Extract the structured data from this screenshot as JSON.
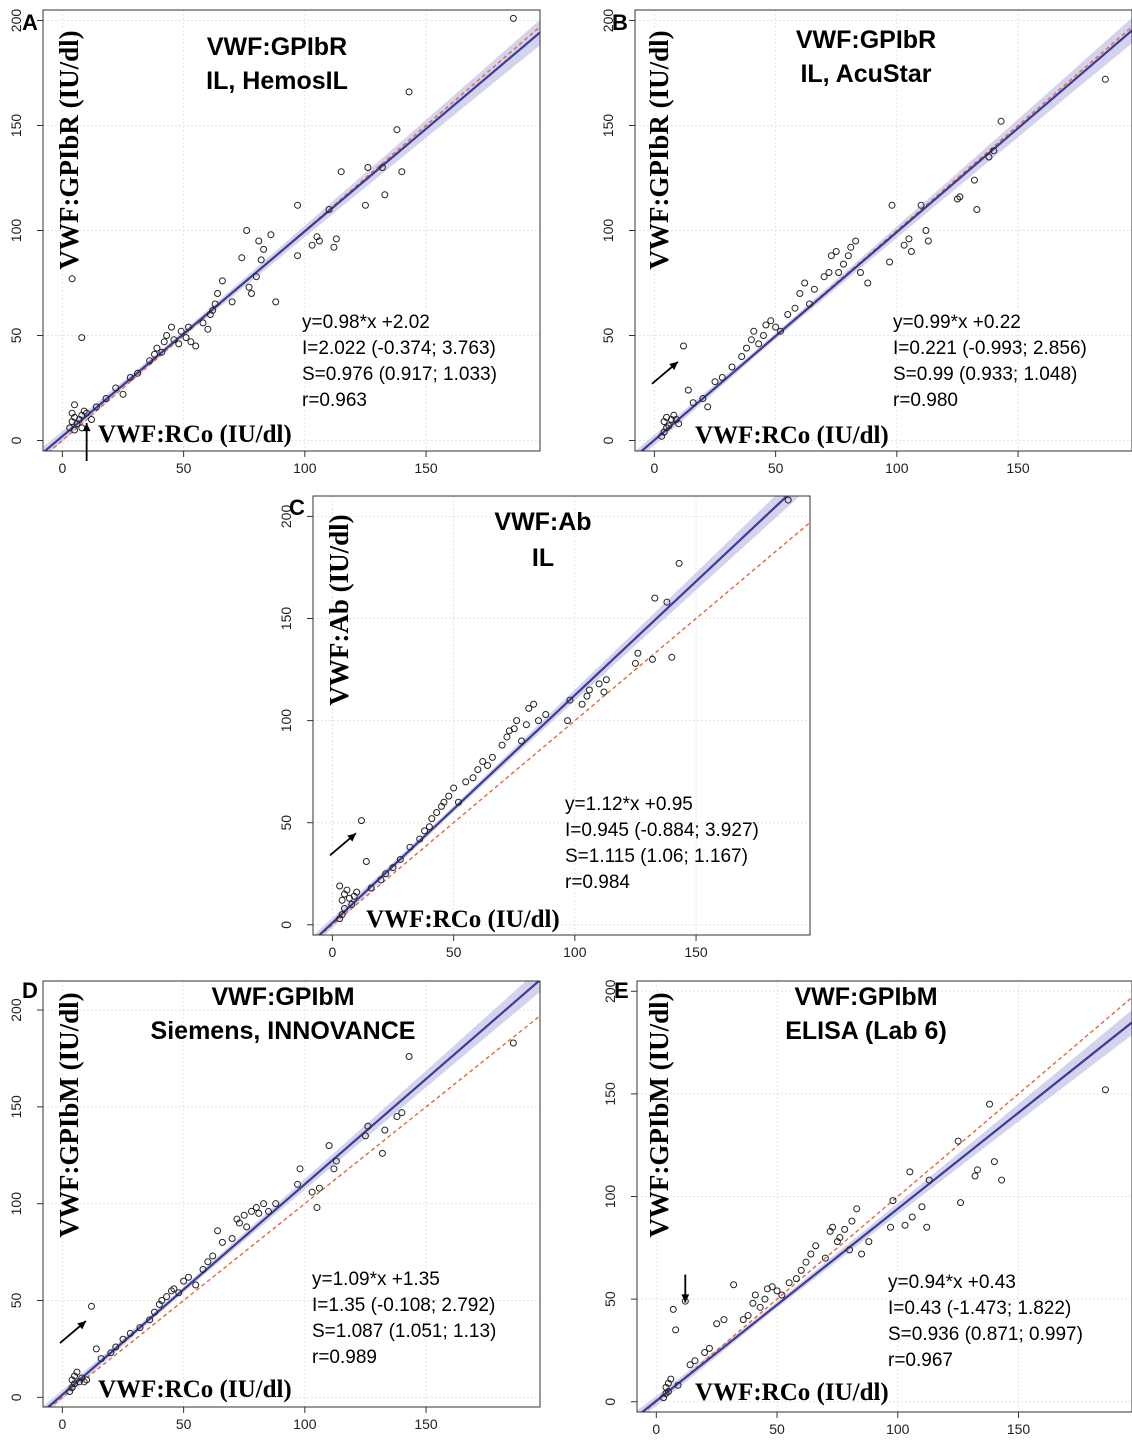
{
  "chart_data": [
    {
      "type": "scatter",
      "panel": "A",
      "title": [
        "VWF:GPIbR",
        "IL, HemosIL"
      ],
      "xlabel": "VWF:RCo (IU/dl)",
      "ylabel": "VWF:GPIbR (IU/dl)",
      "xlim": [
        -8,
        197
      ],
      "ylim": [
        -5,
        205
      ],
      "x_ticks": [
        0,
        50,
        100,
        150
      ],
      "y_ticks": [
        0,
        50,
        100,
        150,
        200
      ],
      "stats": [
        "y=0.98*x +2.02",
        "I=2.022 (-0.374; 3.763)",
        "S=0.976 (0.917; 1.033)",
        "r=0.963"
      ],
      "fit": {
        "slope": 0.976,
        "intercept": 2.022
      },
      "identity_line": true,
      "annotation_arrow": {
        "x": 10,
        "y": -15,
        "direction": "up"
      },
      "points": [
        [
          3,
          6
        ],
        [
          4,
          9
        ],
        [
          5,
          11
        ],
        [
          4,
          13
        ],
        [
          5,
          17
        ],
        [
          4,
          77
        ],
        [
          8,
          49
        ],
        [
          6,
          8
        ],
        [
          7,
          10
        ],
        [
          8,
          12
        ],
        [
          9,
          14
        ],
        [
          10,
          13
        ],
        [
          8,
          6
        ],
        [
          5,
          5
        ],
        [
          12,
          10
        ],
        [
          14,
          16
        ],
        [
          18,
          20
        ],
        [
          22,
          25
        ],
        [
          25,
          22
        ],
        [
          28,
          30
        ],
        [
          31,
          32
        ],
        [
          36,
          38
        ],
        [
          38,
          41
        ],
        [
          39,
          44
        ],
        [
          41,
          42
        ],
        [
          42,
          47
        ],
        [
          43,
          50
        ],
        [
          45,
          54
        ],
        [
          46,
          48
        ],
        [
          48,
          46
        ],
        [
          49,
          52
        ],
        [
          51,
          49
        ],
        [
          52,
          54
        ],
        [
          53,
          47
        ],
        [
          55,
          45
        ],
        [
          58,
          56
        ],
        [
          60,
          53
        ],
        [
          61,
          60
        ],
        [
          62,
          62
        ],
        [
          63,
          65
        ],
        [
          64,
          70
        ],
        [
          66,
          76
        ],
        [
          70,
          66
        ],
        [
          74,
          87
        ],
        [
          76,
          100
        ],
        [
          77,
          73
        ],
        [
          78,
          70
        ],
        [
          80,
          78
        ],
        [
          81,
          95
        ],
        [
          82,
          86
        ],
        [
          83,
          91
        ],
        [
          86,
          98
        ],
        [
          88,
          66
        ],
        [
          97,
          88
        ],
        [
          97,
          112
        ],
        [
          103,
          93
        ],
        [
          105,
          97
        ],
        [
          106,
          95
        ],
        [
          110,
          110
        ],
        [
          112,
          92
        ],
        [
          113,
          96
        ],
        [
          115,
          128
        ],
        [
          125,
          112
        ],
        [
          126,
          130
        ],
        [
          132,
          130
        ],
        [
          133,
          117
        ],
        [
          138,
          148
        ],
        [
          140,
          128
        ],
        [
          143,
          166
        ],
        [
          186,
          201
        ]
      ]
    },
    {
      "type": "scatter",
      "panel": "B",
      "title": [
        "VWF:GPIbR",
        "IL, AcuStar"
      ],
      "xlabel": "VWF:RCo (IU/dl)",
      "ylabel": "VWF:GPIbR (IU/dl)",
      "xlim": [
        -8,
        197
      ],
      "ylim": [
        -5,
        205
      ],
      "x_ticks": [
        0,
        50,
        100,
        150
      ],
      "y_ticks": [
        0,
        50,
        100,
        150,
        200
      ],
      "stats": [
        "y=0.99*x +0.22",
        "I=0.221 (-0.993; 2.856)",
        "S=0.99 (0.933; 1.048)",
        "r=0.980"
      ],
      "fit": {
        "slope": 0.99,
        "intercept": 0.221
      },
      "identity_line": true,
      "annotation_arrow": {
        "x": -1,
        "y": 27,
        "direction": "up-right"
      },
      "points": [
        [
          3,
          2
        ],
        [
          4,
          4
        ],
        [
          5,
          6
        ],
        [
          4,
          9
        ],
        [
          5,
          11
        ],
        [
          6,
          7
        ],
        [
          7,
          10
        ],
        [
          8,
          12
        ],
        [
          9,
          10
        ],
        [
          10,
          8
        ],
        [
          12,
          45
        ],
        [
          14,
          24
        ],
        [
          16,
          18
        ],
        [
          20,
          20
        ],
        [
          22,
          16
        ],
        [
          25,
          28
        ],
        [
          28,
          30
        ],
        [
          32,
          35
        ],
        [
          36,
          40
        ],
        [
          38,
          44
        ],
        [
          40,
          48
        ],
        [
          41,
          52
        ],
        [
          43,
          46
        ],
        [
          45,
          50
        ],
        [
          46,
          55
        ],
        [
          48,
          57
        ],
        [
          50,
          54
        ],
        [
          52,
          52
        ],
        [
          55,
          60
        ],
        [
          58,
          63
        ],
        [
          60,
          70
        ],
        [
          62,
          75
        ],
        [
          64,
          65
        ],
        [
          66,
          72
        ],
        [
          70,
          78
        ],
        [
          72,
          80
        ],
        [
          73,
          88
        ],
        [
          75,
          90
        ],
        [
          76,
          80
        ],
        [
          78,
          84
        ],
        [
          80,
          88
        ],
        [
          81,
          92
        ],
        [
          83,
          95
        ],
        [
          85,
          80
        ],
        [
          88,
          75
        ],
        [
          97,
          85
        ],
        [
          98,
          112
        ],
        [
          103,
          93
        ],
        [
          105,
          96
        ],
        [
          106,
          90
        ],
        [
          110,
          112
        ],
        [
          112,
          100
        ],
        [
          113,
          95
        ],
        [
          125,
          115
        ],
        [
          126,
          116
        ],
        [
          132,
          124
        ],
        [
          133,
          110
        ],
        [
          138,
          135
        ],
        [
          140,
          138
        ],
        [
          143,
          152
        ],
        [
          186,
          172
        ]
      ]
    },
    {
      "type": "scatter",
      "panel": "C",
      "title": [
        "VWF:Ab",
        "IL"
      ],
      "xlabel": "VWF:RCo (IU/dl)",
      "ylabel": "VWF:Ab (IU/dl)",
      "xlim": [
        -8,
        197
      ],
      "ylim": [
        -5,
        210
      ],
      "x_ticks": [
        0,
        50,
        100,
        150
      ],
      "y_ticks": [
        0,
        50,
        100,
        150,
        200
      ],
      "stats": [
        "y=1.12*x +0.95",
        "I=0.945 (-0.884; 3.927)",
        "S=1.115 (1.06; 1.167)",
        "r=0.984"
      ],
      "fit": {
        "slope": 1.115,
        "intercept": 0.945
      },
      "identity_line": true,
      "annotation_arrow": {
        "x": -1,
        "y": 34,
        "direction": "up-right"
      },
      "points": [
        [
          3,
          3
        ],
        [
          4,
          5
        ],
        [
          5,
          8
        ],
        [
          4,
          12
        ],
        [
          5,
          15
        ],
        [
          3,
          19
        ],
        [
          6,
          17
        ],
        [
          7,
          13
        ],
        [
          8,
          10
        ],
        [
          9,
          14
        ],
        [
          10,
          16
        ],
        [
          12,
          51
        ],
        [
          14,
          31
        ],
        [
          16,
          18
        ],
        [
          20,
          22
        ],
        [
          22,
          25
        ],
        [
          25,
          28
        ],
        [
          28,
          32
        ],
        [
          32,
          38
        ],
        [
          36,
          42
        ],
        [
          38,
          46
        ],
        [
          40,
          48
        ],
        [
          41,
          52
        ],
        [
          43,
          55
        ],
        [
          45,
          58
        ],
        [
          46,
          60
        ],
        [
          48,
          63
        ],
        [
          50,
          67
        ],
        [
          52,
          60
        ],
        [
          55,
          70
        ],
        [
          58,
          72
        ],
        [
          60,
          76
        ],
        [
          62,
          80
        ],
        [
          64,
          78
        ],
        [
          66,
          82
        ],
        [
          70,
          88
        ],
        [
          72,
          92
        ],
        [
          73,
          95
        ],
        [
          75,
          96
        ],
        [
          76,
          100
        ],
        [
          78,
          90
        ],
        [
          80,
          98
        ],
        [
          81,
          106
        ],
        [
          83,
          108
        ],
        [
          85,
          100
        ],
        [
          88,
          103
        ],
        [
          97,
          100
        ],
        [
          98,
          110
        ],
        [
          103,
          108
        ],
        [
          105,
          112
        ],
        [
          106,
          115
        ],
        [
          110,
          118
        ],
        [
          112,
          114
        ],
        [
          113,
          120
        ],
        [
          125,
          128
        ],
        [
          126,
          133
        ],
        [
          132,
          130
        ],
        [
          133,
          160
        ],
        [
          138,
          158
        ],
        [
          140,
          131
        ],
        [
          143,
          177
        ],
        [
          188,
          208
        ]
      ]
    },
    {
      "type": "scatter",
      "panel": "D",
      "title": [
        "VWF:GPIbM",
        "Siemens, INNOVANCE"
      ],
      "xlabel": "VWF:RCo (IU/dl)",
      "ylabel": "VWF:GPIbM (IU/dl)",
      "xlim": [
        -8,
        197
      ],
      "ylim": [
        -5,
        215
      ],
      "x_ticks": [
        0,
        50,
        100,
        150
      ],
      "y_ticks": [
        0,
        50,
        100,
        150,
        200
      ],
      "stats": [
        "y=1.09*x +1.35",
        "I=1.35 (-0.108; 2.792)",
        "S=1.087 (1.051; 1.13)",
        "r=0.989"
      ],
      "fit": {
        "slope": 1.087,
        "intercept": 1.35
      },
      "identity_line": true,
      "annotation_arrow": {
        "x": -1,
        "y": 28,
        "direction": "up-right"
      },
      "points": [
        [
          3,
          3
        ],
        [
          4,
          5
        ],
        [
          5,
          7
        ],
        [
          4,
          9
        ],
        [
          5,
          11
        ],
        [
          6,
          13
        ],
        [
          7,
          8
        ],
        [
          8,
          10
        ],
        [
          9,
          8
        ],
        [
          10,
          9
        ],
        [
          12,
          47
        ],
        [
          14,
          25
        ],
        [
          16,
          20
        ],
        [
          20,
          23
        ],
        [
          22,
          26
        ],
        [
          25,
          30
        ],
        [
          28,
          33
        ],
        [
          32,
          36
        ],
        [
          36,
          40
        ],
        [
          38,
          44
        ],
        [
          40,
          48
        ],
        [
          41,
          50
        ],
        [
          43,
          52
        ],
        [
          45,
          55
        ],
        [
          46,
          56
        ],
        [
          48,
          54
        ],
        [
          50,
          60
        ],
        [
          52,
          62
        ],
        [
          55,
          58
        ],
        [
          58,
          66
        ],
        [
          60,
          70
        ],
        [
          62,
          73
        ],
        [
          64,
          86
        ],
        [
          66,
          80
        ],
        [
          70,
          82
        ],
        [
          72,
          92
        ],
        [
          73,
          90
        ],
        [
          75,
          94
        ],
        [
          76,
          88
        ],
        [
          78,
          96
        ],
        [
          80,
          98
        ],
        [
          81,
          95
        ],
        [
          83,
          100
        ],
        [
          85,
          96
        ],
        [
          88,
          100
        ],
        [
          97,
          110
        ],
        [
          98,
          118
        ],
        [
          103,
          106
        ],
        [
          105,
          98
        ],
        [
          106,
          108
        ],
        [
          110,
          130
        ],
        [
          112,
          118
        ],
        [
          113,
          122
        ],
        [
          125,
          135
        ],
        [
          126,
          140
        ],
        [
          132,
          126
        ],
        [
          133,
          138
        ],
        [
          138,
          145
        ],
        [
          140,
          147
        ],
        [
          143,
          176
        ],
        [
          186,
          183
        ]
      ]
    },
    {
      "type": "scatter",
      "panel": "E",
      "title": [
        "VWF:GPIbM",
        "ELISA (Lab 6)"
      ],
      "xlabel": "VWF:RCo (IU/dl)",
      "ylabel": "VWF:GPIbM (IU/dl)",
      "xlim": [
        -8,
        197
      ],
      "ylim": [
        -5,
        205
      ],
      "x_ticks": [
        0,
        50,
        100,
        150
      ],
      "y_ticks": [
        0,
        50,
        100,
        150,
        200
      ],
      "stats": [
        "y=0.94*x +0.43",
        "I=0.43 (-1.473; 1.822)",
        "S=0.936 (0.871; 0.997)",
        "r=0.967"
      ],
      "fit": {
        "slope": 0.936,
        "intercept": 0.43
      },
      "identity_line": true,
      "annotation_arrow": {
        "x": 12,
        "y": 62,
        "direction": "down"
      },
      "points": [
        [
          3,
          2
        ],
        [
          4,
          4
        ],
        [
          5,
          5
        ],
        [
          4,
          7
        ],
        [
          5,
          9
        ],
        [
          6,
          11
        ],
        [
          7,
          45
        ],
        [
          8,
          35
        ],
        [
          9,
          8
        ],
        [
          12,
          49
        ],
        [
          14,
          18
        ],
        [
          16,
          20
        ],
        [
          20,
          24
        ],
        [
          22,
          26
        ],
        [
          25,
          38
        ],
        [
          28,
          40
        ],
        [
          32,
          57
        ],
        [
          36,
          40
        ],
        [
          38,
          42
        ],
        [
          40,
          48
        ],
        [
          41,
          52
        ],
        [
          43,
          46
        ],
        [
          45,
          50
        ],
        [
          46,
          55
        ],
        [
          48,
          56
        ],
        [
          50,
          54
        ],
        [
          52,
          52
        ],
        [
          55,
          58
        ],
        [
          58,
          60
        ],
        [
          60,
          64
        ],
        [
          62,
          68
        ],
        [
          64,
          72
        ],
        [
          66,
          76
        ],
        [
          70,
          70
        ],
        [
          72,
          83
        ],
        [
          73,
          85
        ],
        [
          75,
          78
        ],
        [
          76,
          80
        ],
        [
          78,
          84
        ],
        [
          80,
          74
        ],
        [
          81,
          88
        ],
        [
          83,
          94
        ],
        [
          85,
          72
        ],
        [
          88,
          78
        ],
        [
          97,
          85
        ],
        [
          98,
          98
        ],
        [
          103,
          86
        ],
        [
          105,
          112
        ],
        [
          106,
          90
        ],
        [
          110,
          95
        ],
        [
          112,
          85
        ],
        [
          113,
          108
        ],
        [
          125,
          127
        ],
        [
          126,
          97
        ],
        [
          132,
          110
        ],
        [
          133,
          113
        ],
        [
          138,
          145
        ],
        [
          140,
          117
        ],
        [
          143,
          108
        ],
        [
          186,
          152
        ]
      ]
    }
  ]
}
